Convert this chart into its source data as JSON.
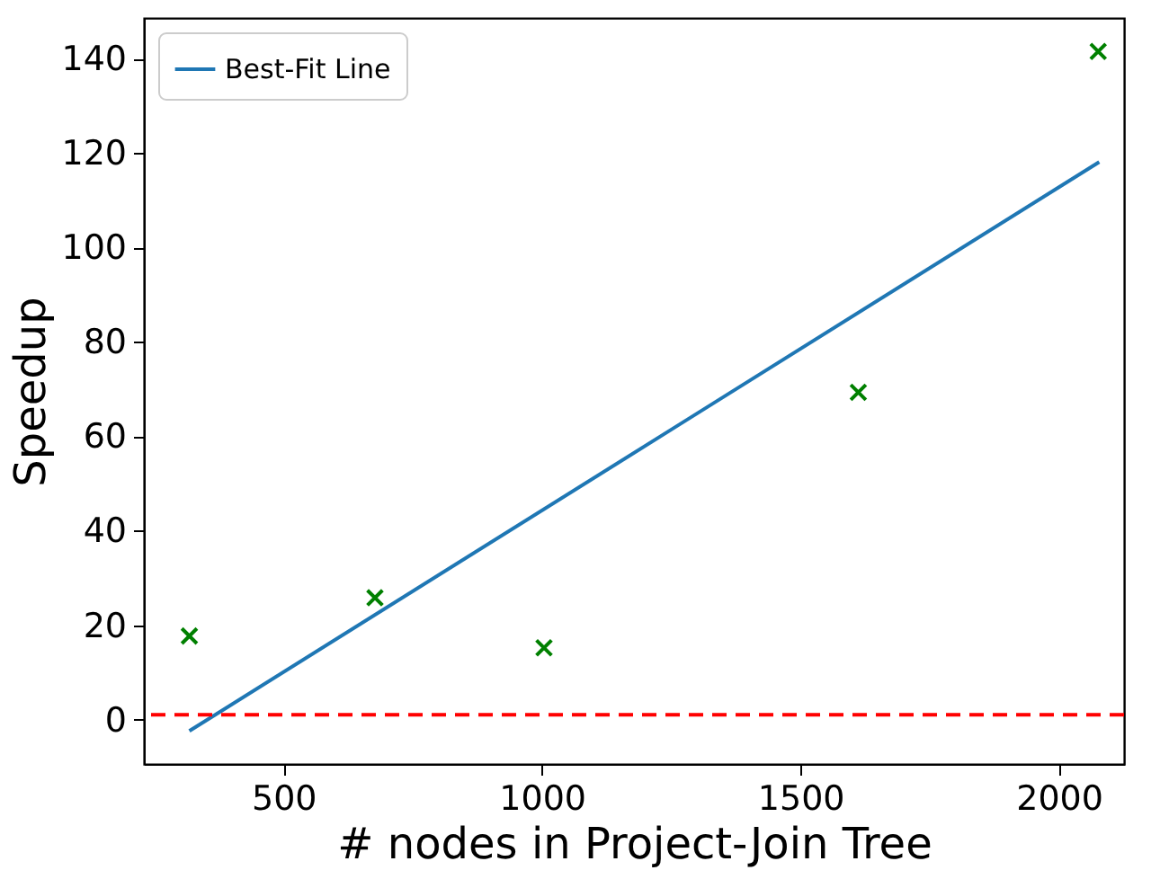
{
  "chart_data": {
    "type": "scatter",
    "xlabel": "# nodes in Project-Join Tree",
    "ylabel": "Speedup",
    "xlim": [
      230,
      2126
    ],
    "xticks": [
      500,
      1000,
      1500,
      2000
    ],
    "ylim": [
      -9.4,
      148.6
    ],
    "yticks": [
      0,
      20,
      40,
      60,
      80,
      100,
      120,
      140
    ],
    "grid": false,
    "legend": "top left",
    "series": [
      {
        "color": "#008000",
        "marker": "cross",
        "x": [
          318,
          677,
          1004,
          1612,
          2076
        ],
        "values": [
          17.7,
          25.8,
          15.2,
          69.3,
          141.5
        ]
      },
      {
        "type": "line",
        "name": "Best-Fit Line",
        "color": "#1f77b4",
        "marker": "none",
        "line_style": "solid",
        "x": [
          318,
          2078
        ],
        "values": [
          -2.4,
          118.1
        ]
      }
    ],
    "ref_lines": [
      {
        "axis": "y",
        "value": 1,
        "color": "#ff0000",
        "line_style": "dashed"
      }
    ]
  }
}
